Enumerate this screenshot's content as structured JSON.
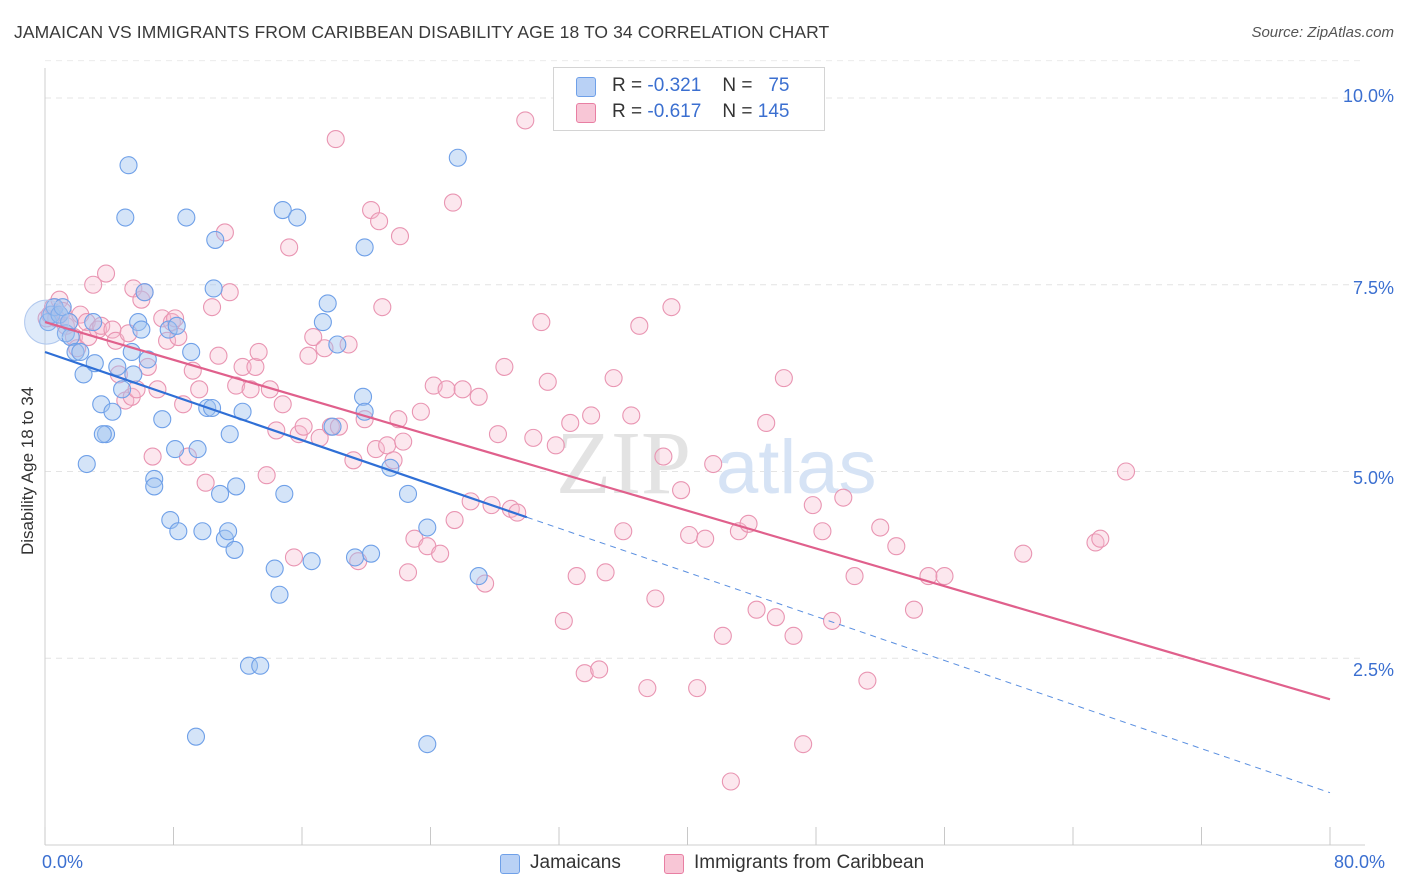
{
  "title": "JAMAICAN VS IMMIGRANTS FROM CARIBBEAN DISABILITY AGE 18 TO 34 CORRELATION CHART",
  "source": "Source: ZipAtlas.com",
  "watermark": {
    "zip": "ZIP",
    "atlas": "atlas"
  },
  "legend_top": [
    {
      "r_label": "R =",
      "r_value": "-0.321",
      "n_label": "N =",
      "n_value": "75",
      "color": "#6fa0e8",
      "fill": "#b9d1f5"
    },
    {
      "r_label": "R =",
      "r_value": "-0.617",
      "n_label": "N =",
      "n_value": "145",
      "color": "#e87fa3",
      "fill": "#f8c6d6"
    }
  ],
  "legend_bottom": [
    {
      "label": "Jamaicans",
      "color": "#6fa0e8",
      "fill": "#b9d1f5"
    },
    {
      "label": "Immigrants from Caribbean",
      "color": "#e87fa3",
      "fill": "#f8c6d6"
    }
  ],
  "ylabel": "Disability Age 18 to 34",
  "yticks": [
    "10.0%",
    "7.5%",
    "5.0%",
    "2.5%"
  ],
  "xticks": [
    "0.0%",
    "80.0%"
  ],
  "chart_data": {
    "type": "scatter",
    "title": "JAMAICAN VS IMMIGRANTS FROM CARIBBEAN DISABILITY AGE 18 TO 34 CORRELATION CHART",
    "xlabel": "",
    "ylabel": "Disability Age 18 to 34",
    "xlim": [
      0,
      80
    ],
    "ylim": [
      0,
      10.5
    ],
    "grid": true,
    "legend": "top-center",
    "series": [
      {
        "name": "Jamaicans",
        "color": "#6fa0e8",
        "r": -0.321,
        "n": 75,
        "trend": {
          "x0": 0,
          "y0": 6.6,
          "x1": 80,
          "y1": 0.7,
          "solid_until": 30
        },
        "points": [
          [
            0.2,
            7.0
          ],
          [
            0.4,
            7.1
          ],
          [
            0.6,
            7.2
          ],
          [
            0.9,
            7.1
          ],
          [
            1.1,
            7.2
          ],
          [
            1.3,
            6.85
          ],
          [
            1.5,
            7.0
          ],
          [
            1.6,
            6.8
          ],
          [
            1.9,
            6.6
          ],
          [
            2.2,
            6.6
          ],
          [
            2.4,
            6.3
          ],
          [
            3.0,
            7.0
          ],
          [
            3.1,
            6.45
          ],
          [
            3.5,
            5.9
          ],
          [
            3.8,
            5.5
          ],
          [
            4.2,
            5.8
          ],
          [
            2.6,
            5.1
          ],
          [
            4.5,
            6.4
          ],
          [
            4.8,
            6.1
          ],
          [
            5.4,
            6.6
          ],
          [
            5.5,
            6.3
          ],
          [
            5.0,
            8.4
          ],
          [
            5.2,
            9.1
          ],
          [
            5.8,
            7.0
          ],
          [
            6.0,
            6.9
          ],
          [
            6.2,
            7.4
          ],
          [
            6.4,
            6.5
          ],
          [
            6.8,
            4.9
          ],
          [
            6.8,
            4.8
          ],
          [
            7.3,
            5.7
          ],
          [
            7.7,
            6.9
          ],
          [
            7.8,
            4.35
          ],
          [
            8.1,
            5.3
          ],
          [
            8.3,
            4.2
          ],
          [
            8.2,
            6.95
          ],
          [
            8.8,
            8.4
          ],
          [
            9.1,
            6.6
          ],
          [
            9.8,
            4.2
          ],
          [
            10.1,
            5.85
          ],
          [
            10.4,
            5.85
          ],
          [
            10.5,
            7.45
          ],
          [
            10.6,
            8.1
          ],
          [
            10.9,
            4.7
          ],
          [
            11.2,
            4.1
          ],
          [
            11.4,
            4.2
          ],
          [
            11.5,
            5.5
          ],
          [
            11.8,
            3.95
          ],
          [
            11.9,
            4.8
          ],
          [
            12.3,
            5.8
          ],
          [
            12.7,
            2.4
          ],
          [
            14.3,
            3.7
          ],
          [
            14.6,
            3.35
          ],
          [
            14.8,
            8.5
          ],
          [
            14.9,
            4.7
          ],
          [
            15.7,
            8.4
          ],
          [
            16.6,
            3.8
          ],
          [
            17.3,
            7.0
          ],
          [
            17.6,
            7.25
          ],
          [
            17.9,
            5.6
          ],
          [
            18.2,
            6.7
          ],
          [
            19.9,
            8.0
          ],
          [
            19.8,
            6.0
          ],
          [
            19.9,
            5.8
          ],
          [
            19.3,
            3.85
          ],
          [
            20.3,
            3.9
          ],
          [
            21.5,
            5.05
          ],
          [
            22.6,
            4.7
          ],
          [
            23.8,
            4.25
          ],
          [
            25.7,
            9.2
          ],
          [
            27.0,
            3.6
          ],
          [
            23.8,
            1.35
          ],
          [
            9.4,
            1.45
          ],
          [
            13.4,
            2.4
          ],
          [
            3.6,
            5.5
          ],
          [
            9.5,
            5.3
          ]
        ]
      },
      {
        "name": "Immigrants from Caribbean",
        "color": "#e87fa3",
        "r": -0.617,
        "n": 145,
        "trend": {
          "x0": 0,
          "y0": 7.0,
          "x1": 80,
          "y1": 1.95,
          "solid_until": 80
        },
        "points": [
          [
            0.1,
            7.05
          ],
          [
            0.3,
            7.1
          ],
          [
            0.5,
            7.2
          ],
          [
            0.7,
            7.05
          ],
          [
            0.9,
            7.3
          ],
          [
            1.1,
            7.15
          ],
          [
            1.3,
            6.95
          ],
          [
            1.5,
            7.0
          ],
          [
            1.8,
            6.8
          ],
          [
            2.0,
            6.65
          ],
          [
            2.2,
            7.1
          ],
          [
            2.6,
            7.0
          ],
          [
            2.7,
            6.8
          ],
          [
            3.0,
            7.5
          ],
          [
            3.3,
            6.9
          ],
          [
            3.5,
            6.95
          ],
          [
            3.8,
            7.65
          ],
          [
            4.2,
            6.9
          ],
          [
            4.4,
            6.75
          ],
          [
            4.6,
            6.3
          ],
          [
            5.0,
            5.95
          ],
          [
            5.2,
            6.85
          ],
          [
            5.4,
            6.0
          ],
          [
            5.5,
            7.45
          ],
          [
            5.7,
            6.1
          ],
          [
            6.0,
            7.3
          ],
          [
            6.2,
            7.4
          ],
          [
            6.4,
            6.4
          ],
          [
            6.7,
            5.2
          ],
          [
            7.0,
            6.1
          ],
          [
            7.3,
            7.05
          ],
          [
            7.6,
            6.75
          ],
          [
            7.9,
            7.0
          ],
          [
            8.1,
            7.05
          ],
          [
            8.3,
            6.8
          ],
          [
            8.6,
            5.9
          ],
          [
            8.9,
            5.2
          ],
          [
            9.2,
            6.35
          ],
          [
            9.6,
            6.1
          ],
          [
            10.0,
            4.85
          ],
          [
            10.4,
            7.2
          ],
          [
            10.8,
            6.55
          ],
          [
            11.2,
            8.2
          ],
          [
            11.5,
            7.4
          ],
          [
            11.9,
            6.15
          ],
          [
            12.3,
            6.4
          ],
          [
            12.8,
            6.1
          ],
          [
            13.1,
            6.4
          ],
          [
            13.3,
            6.6
          ],
          [
            13.8,
            4.95
          ],
          [
            14.0,
            6.1
          ],
          [
            14.4,
            5.55
          ],
          [
            14.8,
            5.9
          ],
          [
            15.2,
            8.0
          ],
          [
            15.5,
            3.85
          ],
          [
            15.8,
            5.5
          ],
          [
            16.1,
            5.6
          ],
          [
            16.4,
            6.55
          ],
          [
            16.7,
            6.8
          ],
          [
            17.1,
            5.45
          ],
          [
            17.4,
            6.65
          ],
          [
            17.8,
            5.6
          ],
          [
            18.3,
            5.6
          ],
          [
            18.9,
            6.7
          ],
          [
            19.2,
            5.15
          ],
          [
            19.5,
            3.8
          ],
          [
            19.9,
            5.7
          ],
          [
            20.3,
            8.5
          ],
          [
            20.6,
            5.3
          ],
          [
            21.0,
            7.2
          ],
          [
            21.3,
            5.35
          ],
          [
            21.7,
            5.15
          ],
          [
            22.0,
            5.7
          ],
          [
            22.3,
            5.4
          ],
          [
            22.6,
            3.65
          ],
          [
            23.0,
            4.1
          ],
          [
            23.4,
            5.8
          ],
          [
            23.8,
            4.0
          ],
          [
            24.2,
            6.15
          ],
          [
            24.6,
            3.9
          ],
          [
            25.0,
            6.1
          ],
          [
            25.5,
            4.35
          ],
          [
            26.0,
            6.1
          ],
          [
            26.5,
            4.6
          ],
          [
            27.0,
            6.0
          ],
          [
            27.4,
            3.5
          ],
          [
            27.8,
            4.55
          ],
          [
            28.2,
            5.5
          ],
          [
            28.6,
            6.4
          ],
          [
            29.0,
            4.5
          ],
          [
            29.4,
            4.45
          ],
          [
            29.9,
            9.7
          ],
          [
            30.4,
            5.45
          ],
          [
            30.9,
            7.0
          ],
          [
            31.3,
            6.2
          ],
          [
            31.8,
            5.35
          ],
          [
            32.3,
            3.0
          ],
          [
            32.7,
            5.65
          ],
          [
            33.1,
            3.6
          ],
          [
            33.6,
            2.3
          ],
          [
            34.0,
            5.75
          ],
          [
            34.5,
            2.35
          ],
          [
            34.9,
            3.65
          ],
          [
            35.4,
            6.25
          ],
          [
            36.0,
            4.2
          ],
          [
            36.5,
            5.75
          ],
          [
            37.0,
            6.95
          ],
          [
            37.5,
            2.1
          ],
          [
            38.0,
            3.3
          ],
          [
            38.5,
            5.2
          ],
          [
            39.0,
            7.2
          ],
          [
            39.6,
            4.75
          ],
          [
            40.1,
            4.15
          ],
          [
            40.6,
            2.1
          ],
          [
            41.1,
            4.1
          ],
          [
            41.6,
            5.1
          ],
          [
            42.2,
            2.8
          ],
          [
            42.7,
            0.85
          ],
          [
            43.2,
            4.2
          ],
          [
            43.8,
            4.3
          ],
          [
            44.3,
            3.15
          ],
          [
            44.9,
            5.65
          ],
          [
            45.5,
            3.05
          ],
          [
            46.0,
            6.25
          ],
          [
            46.6,
            2.8
          ],
          [
            47.2,
            1.35
          ],
          [
            47.8,
            4.55
          ],
          [
            48.4,
            4.2
          ],
          [
            49.0,
            3.0
          ],
          [
            49.7,
            4.65
          ],
          [
            50.4,
            3.6
          ],
          [
            51.2,
            2.2
          ],
          [
            52.0,
            4.25
          ],
          [
            53.0,
            4.0
          ],
          [
            54.1,
            3.15
          ],
          [
            55.0,
            3.6
          ],
          [
            56.0,
            3.6
          ],
          [
            60.9,
            3.9
          ],
          [
            65.4,
            4.05
          ],
          [
            65.7,
            4.1
          ],
          [
            67.3,
            5.0
          ],
          [
            20.8,
            8.35
          ],
          [
            18.1,
            9.45
          ],
          [
            25.4,
            8.6
          ],
          [
            22.1,
            8.15
          ]
        ]
      }
    ]
  }
}
